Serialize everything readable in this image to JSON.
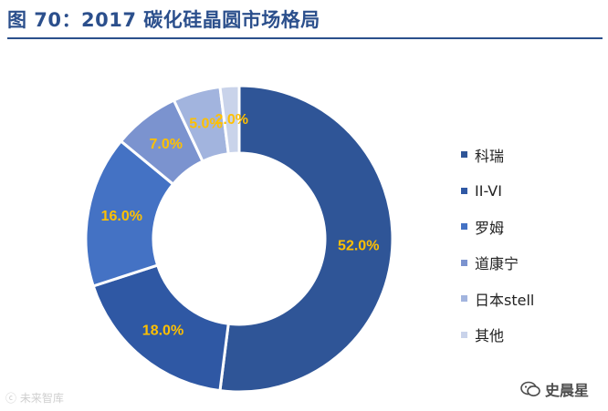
{
  "figure": {
    "title": "图 70：2017 碳化硅晶圆市场格局"
  },
  "chart_data": {
    "type": "pie",
    "donut": true,
    "title": "",
    "categories": [
      "科瑞",
      "II-VI",
      "罗姆",
      "道康宁",
      "日本stell",
      "其他"
    ],
    "values": [
      52.0,
      18.0,
      16.0,
      7.0,
      5.0,
      2.0
    ],
    "data_labels": [
      "52.0%",
      "18.0%",
      "16.0%",
      "7.0%",
      "5.0%",
      "2.0%"
    ],
    "colors": [
      "#2f5597",
      "#2f58a4",
      "#4472c4",
      "#7b93cf",
      "#a2b4de",
      "#c9d3ea"
    ],
    "label_color": "#ffc000",
    "legend": {
      "placement": "right",
      "entries": [
        "科瑞",
        "II-VI",
        "罗姆",
        "道康宁",
        "日本stell",
        "其他"
      ]
    }
  },
  "watermarks": {
    "left": "ⓒ 未来智库",
    "right": "史晨星",
    "right_icon": "wechat-icon"
  }
}
